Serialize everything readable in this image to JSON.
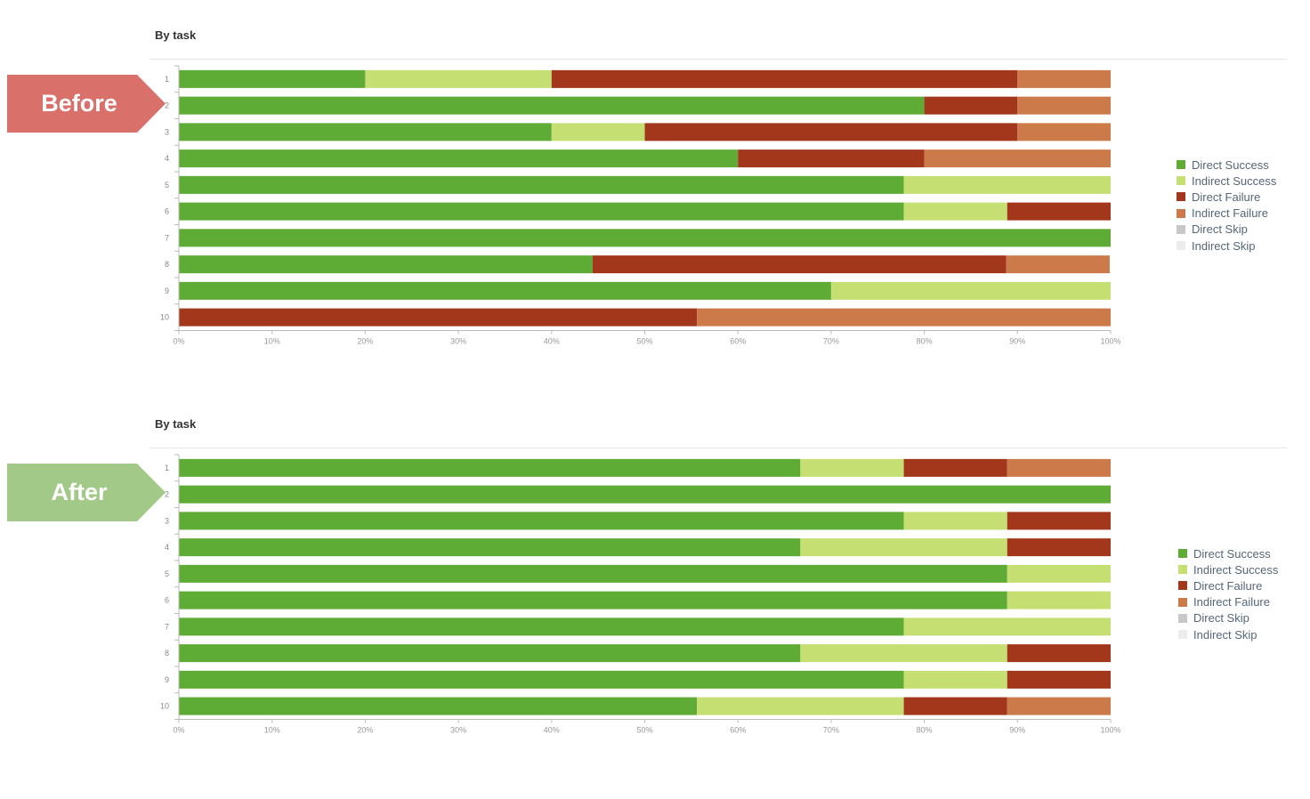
{
  "panels": [
    {
      "id": "before",
      "label": "Before",
      "label_color": "#d9706a",
      "title": "By task"
    },
    {
      "id": "after",
      "label": "After",
      "label_color": "#a3c988",
      "title": "By task"
    }
  ],
  "legend": [
    {
      "name": "Direct Success",
      "color": "#5eab35"
    },
    {
      "name": "Indirect Success",
      "color": "#c5df73"
    },
    {
      "name": "Direct Failure",
      "color": "#a2371b"
    },
    {
      "name": "Indirect Failure",
      "color": "#cc7a4a"
    },
    {
      "name": "Direct Skip",
      "color": "#c8c8c8"
    },
    {
      "name": "Indirect Skip",
      "color": "#ececec"
    }
  ],
  "chart_data": [
    {
      "type": "bar",
      "orientation": "horizontal",
      "stacked": true,
      "title": "By task",
      "categories": [
        "1",
        "2",
        "3",
        "4",
        "5",
        "6",
        "7",
        "8",
        "9",
        "10"
      ],
      "x_ticks": [
        "0%",
        "10%",
        "20%",
        "30%",
        "40%",
        "50%",
        "60%",
        "70%",
        "80%",
        "90%",
        "100%"
      ],
      "xlim": [
        0,
        100
      ],
      "legend_position": "right",
      "series": [
        {
          "name": "Direct Success",
          "color": "#5eab35",
          "values": [
            20,
            80,
            40,
            60,
            77.8,
            77.8,
            100,
            44.4,
            70,
            0
          ]
        },
        {
          "name": "Indirect Success",
          "color": "#c5df73",
          "values": [
            20,
            0,
            10,
            0,
            22.2,
            11.1,
            0,
            0,
            30,
            0
          ]
        },
        {
          "name": "Direct Failure",
          "color": "#a2371b",
          "values": [
            50,
            10,
            40,
            20,
            0,
            11.1,
            0,
            44.4,
            0,
            55.6
          ]
        },
        {
          "name": "Indirect Failure",
          "color": "#cc7a4a",
          "values": [
            10,
            10,
            10,
            20,
            0,
            0,
            0,
            11.1,
            0,
            44.4
          ]
        },
        {
          "name": "Direct Skip",
          "color": "#c8c8c8",
          "values": [
            0,
            0,
            0,
            0,
            0,
            0,
            0,
            0,
            0,
            0
          ]
        },
        {
          "name": "Indirect Skip",
          "color": "#ececec",
          "values": [
            0,
            0,
            0,
            0,
            0,
            0,
            0,
            0,
            0,
            0
          ]
        }
      ]
    },
    {
      "type": "bar",
      "orientation": "horizontal",
      "stacked": true,
      "title": "By task",
      "categories": [
        "1",
        "2",
        "3",
        "4",
        "5",
        "6",
        "7",
        "8",
        "9",
        "10"
      ],
      "x_ticks": [
        "0%",
        "10%",
        "20%",
        "30%",
        "40%",
        "50%",
        "60%",
        "70%",
        "80%",
        "90%",
        "100%"
      ],
      "xlim": [
        0,
        100
      ],
      "legend_position": "right",
      "series": [
        {
          "name": "Direct Success",
          "color": "#5eab35",
          "values": [
            66.7,
            100,
            77.8,
            66.7,
            88.9,
            88.9,
            77.8,
            66.7,
            77.8,
            55.6
          ]
        },
        {
          "name": "Indirect Success",
          "color": "#c5df73",
          "values": [
            11.1,
            0,
            11.1,
            22.2,
            11.1,
            11.1,
            22.2,
            22.2,
            11.1,
            22.2
          ]
        },
        {
          "name": "Direct Failure",
          "color": "#a2371b",
          "values": [
            11.1,
            0,
            11.1,
            11.1,
            0,
            0,
            0,
            11.1,
            11.1,
            11.1
          ]
        },
        {
          "name": "Indirect Failure",
          "color": "#cc7a4a",
          "values": [
            11.1,
            0,
            0,
            0,
            0,
            0,
            0,
            0,
            0,
            11.1
          ]
        },
        {
          "name": "Direct Skip",
          "color": "#c8c8c8",
          "values": [
            0,
            0,
            0,
            0,
            0,
            0,
            0,
            0,
            0,
            0
          ]
        },
        {
          "name": "Indirect Skip",
          "color": "#ececec",
          "values": [
            0,
            0,
            0,
            0,
            0,
            0,
            0,
            0,
            0,
            0
          ]
        }
      ]
    }
  ]
}
